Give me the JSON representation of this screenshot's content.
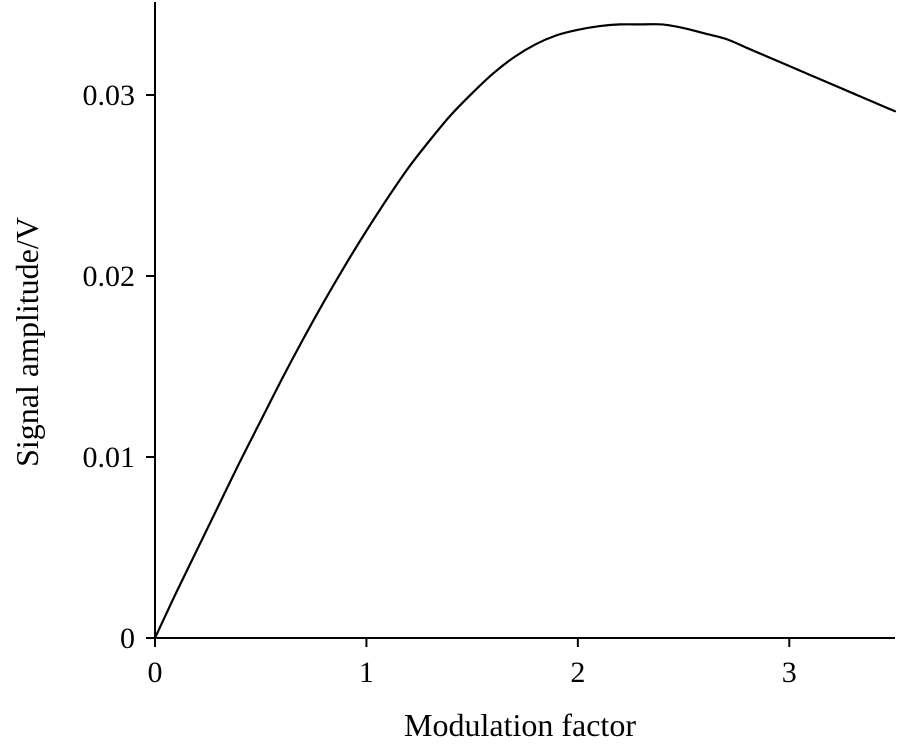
{
  "chart_data": {
    "type": "line",
    "title": "",
    "xlabel": "Modulation factor",
    "ylabel": "Signal amplitude/V",
    "xlim": [
      0,
      3.5
    ],
    "ylim": [
      0,
      0.035
    ],
    "x_ticks": [
      0,
      1,
      2,
      3
    ],
    "x_tick_labels": [
      "0",
      "1",
      "2",
      "3"
    ],
    "y_ticks": [
      0,
      0.01,
      0.02,
      0.03
    ],
    "y_tick_labels": [
      "0",
      "0.01",
      "0.02",
      "0.03"
    ],
    "grid": false,
    "legend": "none",
    "series": [
      {
        "color": "#000000",
        "x": [
          0,
          0.1,
          0.2,
          0.3,
          0.4,
          0.5,
          0.6,
          0.7,
          0.8,
          0.9,
          1.0,
          1.1,
          1.2,
          1.3,
          1.4,
          1.5,
          1.6,
          1.7,
          1.8,
          1.9,
          2.0,
          2.1,
          2.2,
          2.3,
          2.4,
          2.5,
          2.6,
          2.7,
          2.8,
          2.9,
          3.0,
          3.1,
          3.2,
          3.3,
          3.4,
          3.5
        ],
        "y": [
          0,
          0.0025,
          0.0049,
          0.0073,
          0.0097,
          0.012,
          0.0143,
          0.0165,
          0.0186,
          0.0206,
          0.0225,
          0.0243,
          0.026,
          0.0275,
          0.0289,
          0.0301,
          0.0312,
          0.0321,
          0.0328,
          0.0333,
          0.0336,
          0.0338,
          0.0339,
          0.0339,
          0.0339,
          0.0337,
          0.0334,
          0.0331,
          0.0326,
          0.0321,
          0.0316,
          0.0311,
          0.0306,
          0.0301,
          0.0296,
          0.0291
        ]
      }
    ]
  }
}
